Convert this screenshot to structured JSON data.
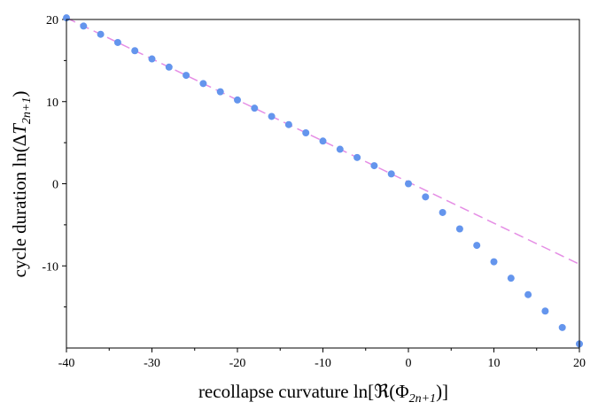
{
  "chart_data": {
    "type": "scatter",
    "xlabel_parts": {
      "prefix": "recollapse curvature ln[",
      "symbol": "ℜ",
      "open": "(Φ",
      "sub": "2n+1",
      "close": ")]"
    },
    "ylabel_parts": {
      "prefix": "cycle duration ln(Δ",
      "var": "T",
      "sub": "2n+1",
      "close": ")"
    },
    "xlim": [
      -40,
      20
    ],
    "ylim": [
      -20,
      20
    ],
    "x_ticks": [
      -40,
      -30,
      -20,
      -10,
      0,
      10,
      20
    ],
    "x_tick_labels": [
      "-40",
      "-30",
      "-20",
      "-10",
      "0",
      "10",
      "20"
    ],
    "y_ticks": [
      -10,
      0,
      10,
      20
    ],
    "y_tick_labels": [
      "-10",
      "0",
      "10",
      "20"
    ],
    "grid": false,
    "series": [
      {
        "kind": "points",
        "color": "#6495ed",
        "x": [
          -40,
          -38,
          -36,
          -34,
          -32,
          -30,
          -28,
          -26,
          -24,
          -22,
          -20,
          -18,
          -16,
          -14,
          -12,
          -10,
          -8,
          -6,
          -4,
          -2,
          0,
          2,
          4,
          6,
          8,
          10,
          12,
          14,
          16,
          18,
          20
        ],
        "y": [
          20.2,
          19.2,
          18.2,
          17.2,
          16.2,
          15.2,
          14.2,
          13.2,
          12.2,
          11.2,
          10.2,
          9.2,
          8.2,
          7.2,
          6.2,
          5.2,
          4.2,
          3.2,
          2.2,
          1.2,
          0.0,
          -1.6,
          -3.5,
          -5.5,
          -7.5,
          -9.5,
          -11.5,
          -13.5,
          -15.5,
          -17.5,
          -19.5
        ]
      },
      {
        "kind": "dashed-line",
        "color": "#e58ee5",
        "x": [
          -40,
          20
        ],
        "y": [
          20.2,
          -9.8
        ]
      }
    ]
  }
}
